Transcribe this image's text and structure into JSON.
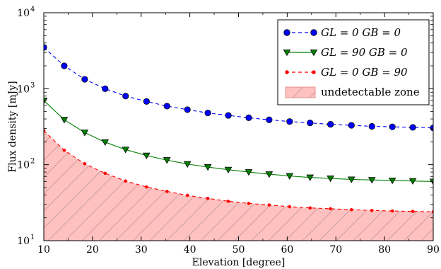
{
  "chart_data": {
    "type": "line",
    "title": "",
    "xlabel": "Elevation [degree]",
    "ylabel": "Flux density [mJy]",
    "xlim": [
      10,
      90
    ],
    "ylim": [
      10,
      10000
    ],
    "yscale": "log",
    "xticks": [
      "10",
      "20",
      "30",
      "40",
      "50",
      "60",
      "70",
      "80",
      "90"
    ],
    "yticks": [
      {
        "value": 10,
        "mantissa": "10",
        "exponent": "1"
      },
      {
        "value": 100,
        "mantissa": "10",
        "exponent": "2"
      },
      {
        "value": 1000,
        "mantissa": "10",
        "exponent": "3"
      },
      {
        "value": 10000,
        "mantissa": "10",
        "exponent": "4"
      }
    ],
    "grid": false,
    "legend_position": "top-right",
    "x": [
      10,
      14.2,
      18.4,
      22.6,
      26.8,
      31.1,
      35.3,
      39.5,
      43.7,
      47.9,
      52.1,
      56.3,
      60.5,
      64.7,
      68.9,
      73.2,
      77.4,
      81.6,
      85.8,
      90
    ],
    "series": [
      {
        "name": "GL = 0 GB = 0",
        "color": "#0000ff",
        "line_style": "dashed",
        "marker": "circle",
        "values": [
          3500,
          2000,
          1330,
          1000,
          800,
          680,
          590,
          530,
          480,
          445,
          415,
          390,
          370,
          355,
          340,
          330,
          320,
          315,
          310,
          305
        ]
      },
      {
        "name": "GL = 90 GB = 0",
        "color": "#008000",
        "line_style": "solid",
        "marker": "triangle-down",
        "values": [
          700,
          390,
          265,
          198,
          158,
          132,
          115,
          102,
          93,
          86,
          80,
          75,
          71,
          68,
          66,
          64,
          63,
          62,
          61,
          60
        ]
      },
      {
        "name": "GL = 0 GB = 90",
        "color": "#ff0000",
        "line_style": "dashed",
        "marker": "dot",
        "values": [
          280,
          155,
          103,
          77,
          61,
          51,
          44.5,
          39.5,
          36,
          33,
          31,
          29.5,
          28,
          27,
          26.3,
          25.6,
          25,
          24.6,
          24.3,
          24
        ]
      }
    ],
    "filled_region": {
      "name": "undetectable zone",
      "below_series": "GL = 0 GB = 90",
      "fill": "#ffc0c0",
      "hatch": "#c8a0a0"
    }
  }
}
